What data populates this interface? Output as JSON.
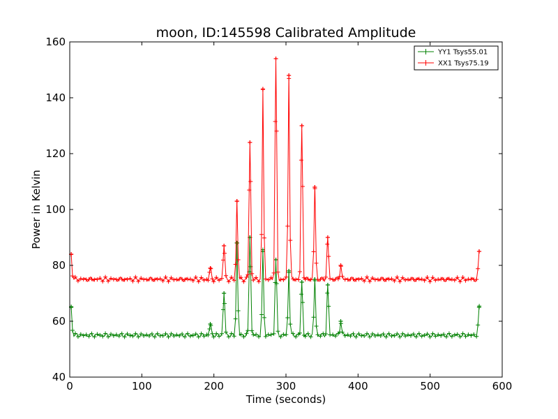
{
  "chart_data": {
    "type": "line",
    "title": "moon, ID:145598 Calibrated Amplitude",
    "xlabel": "Time (seconds)",
    "ylabel": "Power in Kelvin",
    "xlim": [
      0,
      600
    ],
    "ylim": [
      40,
      160
    ],
    "xticks": [
      "0",
      "100",
      "200",
      "300",
      "400",
      "500",
      "600"
    ],
    "yticks": [
      "40",
      "60",
      "80",
      "100",
      "120",
      "140",
      "160"
    ],
    "grid": false,
    "legend_position": "top-right",
    "series": [
      {
        "name": "YY1 Tsys55.01",
        "color": "#008000",
        "baseline": 55,
        "peaks": [
          {
            "x": 2,
            "y": 65
          },
          {
            "x": 195,
            "y": 59
          },
          {
            "x": 214,
            "y": 70
          },
          {
            "x": 232,
            "y": 88
          },
          {
            "x": 250,
            "y": 90
          },
          {
            "x": 268,
            "y": 85
          },
          {
            "x": 286,
            "y": 82
          },
          {
            "x": 304,
            "y": 78
          },
          {
            "x": 322,
            "y": 74
          },
          {
            "x": 340,
            "y": 75
          },
          {
            "x": 358,
            "y": 73
          },
          {
            "x": 376,
            "y": 60
          },
          {
            "x": 568,
            "y": 65
          }
        ]
      },
      {
        "name": "XX1 Tsys75.19",
        "color": "#ff0000",
        "baseline": 75,
        "peaks": [
          {
            "x": 2,
            "y": 84
          },
          {
            "x": 195,
            "y": 79
          },
          {
            "x": 214,
            "y": 87
          },
          {
            "x": 232,
            "y": 103
          },
          {
            "x": 250,
            "y": 124
          },
          {
            "x": 268,
            "y": 143
          },
          {
            "x": 286,
            "y": 154
          },
          {
            "x": 304,
            "y": 148
          },
          {
            "x": 322,
            "y": 130
          },
          {
            "x": 340,
            "y": 108
          },
          {
            "x": 358,
            "y": 90
          },
          {
            "x": 376,
            "y": 80
          },
          {
            "x": 568,
            "y": 85
          }
        ]
      }
    ]
  }
}
